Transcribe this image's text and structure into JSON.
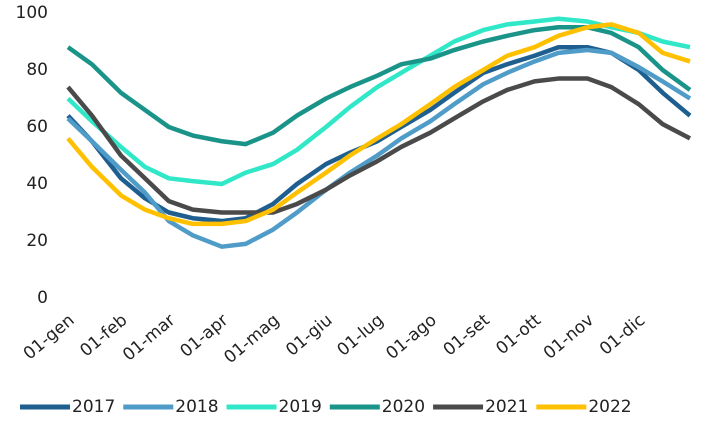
{
  "chart_data": {
    "type": "line",
    "x": [
      1,
      15,
      32,
      46,
      60,
      74,
      91,
      105,
      121,
      135,
      152,
      166,
      182,
      196,
      213,
      227,
      244,
      258,
      274,
      288,
      305,
      319,
      335,
      349,
      365
    ],
    "xlim": [
      1,
      365
    ],
    "xticks": [
      {
        "value": 1,
        "label": "01-gen"
      },
      {
        "value": 32,
        "label": "01-feb"
      },
      {
        "value": 60,
        "label": "01-mar"
      },
      {
        "value": 91,
        "label": "01-apr"
      },
      {
        "value": 121,
        "label": "01-mag"
      },
      {
        "value": 152,
        "label": "01-giu"
      },
      {
        "value": 182,
        "label": "01-lug"
      },
      {
        "value": 213,
        "label": "01-ago"
      },
      {
        "value": 244,
        "label": "01-set"
      },
      {
        "value": 274,
        "label": "01-ott"
      },
      {
        "value": 305,
        "label": "01-nov"
      },
      {
        "value": 335,
        "label": "01-dic"
      }
    ],
    "ylim": [
      0,
      100
    ],
    "yticks": [
      0,
      20,
      40,
      60,
      80,
      100
    ],
    "legend": "bottom",
    "series": [
      {
        "name": "2017",
        "color": "#1f5f8f",
        "values": [
          64,
          55,
          42,
          35,
          30,
          28,
          27,
          28,
          33,
          40,
          47,
          51,
          55,
          60,
          66,
          72,
          79,
          82,
          85,
          88,
          88,
          86,
          80,
          72,
          64
        ]
      },
      {
        "name": "2018",
        "color": "#4f9cc9",
        "values": [
          63,
          55,
          45,
          37,
          27,
          22,
          18,
          19,
          24,
          30,
          38,
          44,
          50,
          56,
          62,
          68,
          75,
          79,
          83,
          86,
          87,
          86,
          81,
          76,
          70
        ]
      },
      {
        "name": "2019",
        "color": "#30e8c8",
        "values": [
          70,
          62,
          53,
          46,
          42,
          41,
          40,
          44,
          47,
          52,
          60,
          67,
          74,
          79,
          85,
          90,
          94,
          96,
          97,
          98,
          97,
          95,
          93,
          90,
          88
        ]
      },
      {
        "name": "2020",
        "color": "#1a9488",
        "values": [
          88,
          82,
          72,
          66,
          60,
          57,
          55,
          54,
          58,
          64,
          70,
          74,
          78,
          82,
          84,
          87,
          90,
          92,
          94,
          95,
          95,
          93,
          88,
          80,
          73
        ]
      },
      {
        "name": "2021",
        "color": "#4a4a4a",
        "values": [
          74,
          64,
          50,
          42,
          34,
          31,
          30,
          30,
          30,
          33,
          38,
          43,
          48,
          53,
          58,
          63,
          69,
          73,
          76,
          77,
          77,
          74,
          68,
          61,
          56
        ]
      },
      {
        "name": "2022",
        "color": "#ffc000",
        "values": [
          56,
          46,
          36,
          31,
          28,
          26,
          26,
          27,
          31,
          37,
          44,
          50,
          56,
          61,
          68,
          74,
          80,
          85,
          88,
          92,
          95,
          96,
          93,
          86,
          83
        ]
      }
    ]
  }
}
